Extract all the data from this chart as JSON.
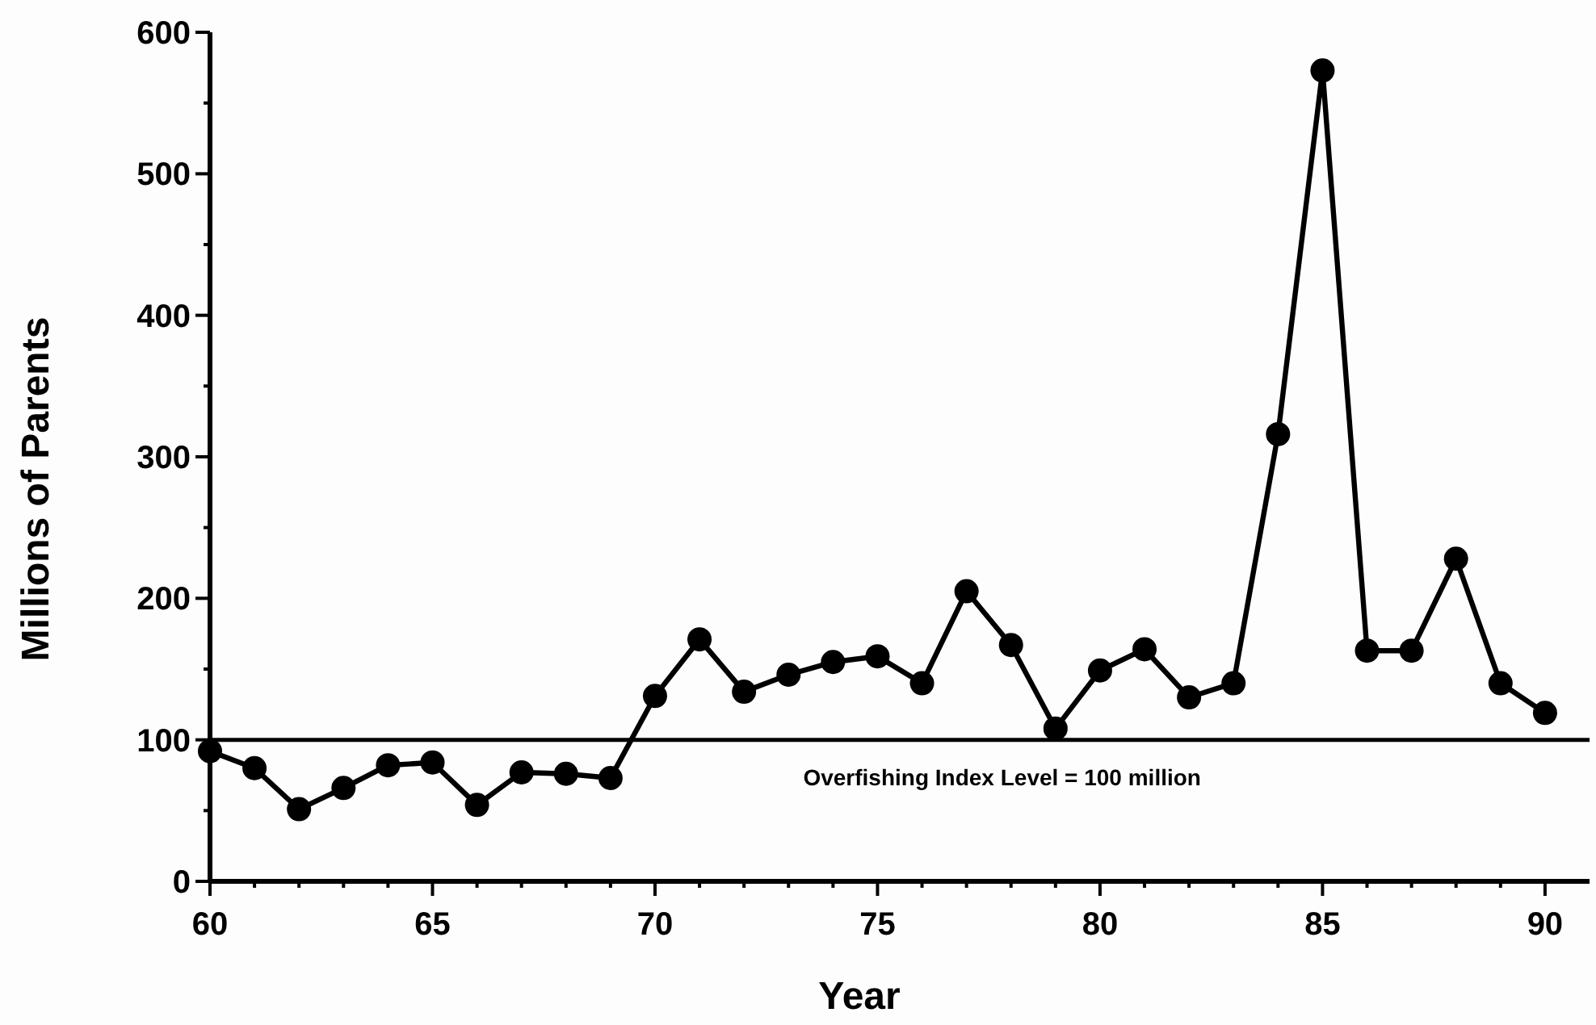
{
  "chart_data": {
    "type": "line",
    "xlabel": "Year",
    "ylabel": "Millions of Parents",
    "x": [
      60,
      61,
      62,
      63,
      64,
      65,
      66,
      67,
      68,
      69,
      70,
      71,
      72,
      73,
      74,
      75,
      76,
      77,
      78,
      79,
      80,
      81,
      82,
      83,
      84,
      85,
      86,
      87,
      88,
      89,
      90
    ],
    "series": [
      {
        "color": "#000000",
        "values": [
          92,
          80,
          51,
          66,
          82,
          84,
          54,
          77,
          76,
          73,
          131,
          171,
          134,
          146,
          155,
          159,
          140,
          205,
          167,
          108,
          149,
          164,
          130,
          140,
          316,
          573,
          163,
          163,
          228,
          140,
          119
        ]
      }
    ],
    "xlim": [
      60,
      91
    ],
    "xticks": [
      60,
      {
        "value": 61,
        "label": null
      },
      {
        "value": 62,
        "label": null
      },
      {
        "value": 63,
        "label": null
      },
      {
        "value": 64,
        "label": null
      },
      65,
      {
        "value": 66,
        "label": null
      },
      {
        "value": 67,
        "label": null
      },
      {
        "value": 68,
        "label": null
      },
      {
        "value": 69,
        "label": null
      },
      70,
      {
        "value": 71,
        "label": null
      },
      {
        "value": 72,
        "label": null
      },
      {
        "value": 73,
        "label": null
      },
      {
        "value": 74,
        "label": null
      },
      75,
      {
        "value": 76,
        "label": null
      },
      {
        "value": 77,
        "label": null
      },
      {
        "value": 78,
        "label": null
      },
      {
        "value": 79,
        "label": null
      },
      80,
      {
        "value": 81,
        "label": null
      },
      {
        "value": 82,
        "label": null
      },
      {
        "value": 83,
        "label": null
      },
      {
        "value": 84,
        "label": null
      },
      85,
      {
        "value": 86,
        "label": null
      },
      {
        "value": 87,
        "label": null
      },
      {
        "value": 88,
        "label": null
      },
      {
        "value": 89,
        "label": null
      },
      90
    ],
    "ylim": [
      0,
      600
    ],
    "yticks": [
      0,
      {
        "value": 50,
        "label": null
      },
      100,
      {
        "value": 150,
        "label": null
      },
      200,
      {
        "value": 250,
        "label": null
      },
      300,
      {
        "value": 350,
        "label": null
      },
      400,
      {
        "value": 450,
        "label": null
      },
      500,
      {
        "value": 550,
        "label": null
      },
      600
    ],
    "ref_lines": [
      {
        "axis": "y",
        "value": 100,
        "label": "Overfishing Index Level = 100 million",
        "color": "#000000"
      }
    ],
    "grid": false,
    "marker": "circle",
    "line_style": "solid"
  }
}
